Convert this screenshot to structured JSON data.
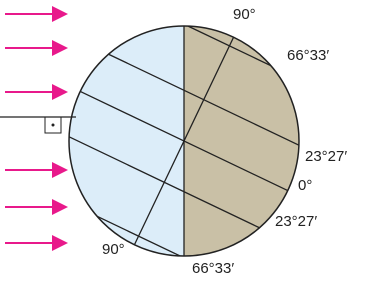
{
  "labels": {
    "north_pole": "90°",
    "arctic_circle": "66°33′",
    "tropic_of_cancer": "23°27′",
    "equator": "0°",
    "tropic_of_capricorn": "23°27′",
    "south_pole": "90°",
    "antarctic_circle": "66°33′"
  }
}
